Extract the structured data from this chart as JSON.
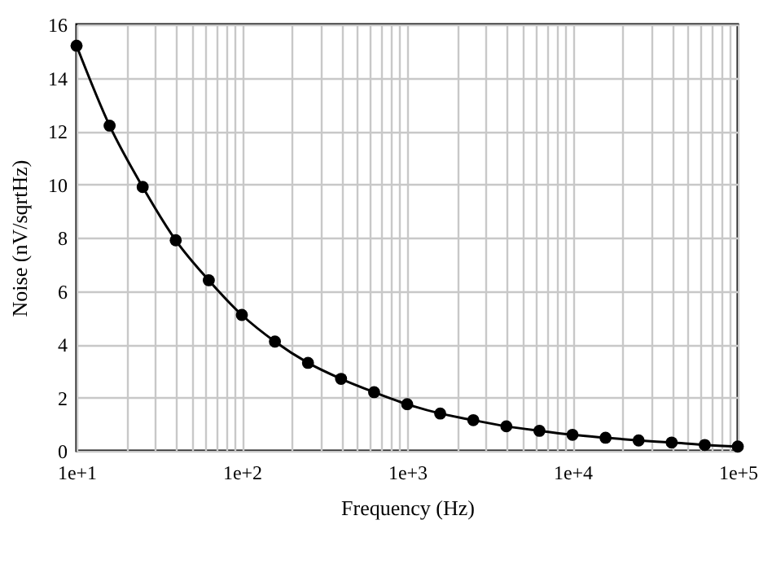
{
  "chart_data": {
    "type": "line",
    "xlabel": "Frequency (Hz)",
    "ylabel": "Noise (nV/sqrtHz)",
    "x": [
      10,
      15.85,
      25.12,
      39.81,
      63.1,
      100,
      158.5,
      251.2,
      398.1,
      631,
      1000,
      1585,
      2512,
      3981,
      6310,
      10000,
      15850,
      25120,
      39810,
      63100,
      100000
    ],
    "series": [
      {
        "color": "#000000",
        "values": [
          15.2,
          12.2,
          9.9,
          7.9,
          6.4,
          5.1,
          4.1,
          3.3,
          2.7,
          2.2,
          1.75,
          1.4,
          1.15,
          0.92,
          0.75,
          0.6,
          0.49,
          0.39,
          0.31,
          0.22,
          0.16
        ]
      }
    ],
    "log": "x",
    "xlim": [
      10,
      100000
    ],
    "ylim": [
      0,
      16
    ],
    "xticks": [
      {
        "value": 10,
        "label": "1e+1"
      },
      {
        "value": 20,
        "label": null
      },
      {
        "value": 30,
        "label": null
      },
      {
        "value": 40,
        "label": null
      },
      {
        "value": 50,
        "label": null
      },
      {
        "value": 60,
        "label": null
      },
      {
        "value": 70,
        "label": null
      },
      {
        "value": 80,
        "label": null
      },
      {
        "value": 90,
        "label": null
      },
      {
        "value": 100,
        "label": "1e+2"
      },
      {
        "value": 200,
        "label": null
      },
      {
        "value": 300,
        "label": null
      },
      {
        "value": 400,
        "label": null
      },
      {
        "value": 500,
        "label": null
      },
      {
        "value": 600,
        "label": null
      },
      {
        "value": 700,
        "label": null
      },
      {
        "value": 800,
        "label": null
      },
      {
        "value": 900,
        "label": null
      },
      {
        "value": 1000,
        "label": "1e+3"
      },
      {
        "value": 2000,
        "label": null
      },
      {
        "value": 3000,
        "label": null
      },
      {
        "value": 4000,
        "label": null
      },
      {
        "value": 5000,
        "label": null
      },
      {
        "value": 6000,
        "label": null
      },
      {
        "value": 7000,
        "label": null
      },
      {
        "value": 8000,
        "label": null
      },
      {
        "value": 9000,
        "label": null
      },
      {
        "value": 10000,
        "label": "1e+4"
      },
      {
        "value": 20000,
        "label": null
      },
      {
        "value": 30000,
        "label": null
      },
      {
        "value": 40000,
        "label": null
      },
      {
        "value": 50000,
        "label": null
      },
      {
        "value": 60000,
        "label": null
      },
      {
        "value": 70000,
        "label": null
      },
      {
        "value": 80000,
        "label": null
      },
      {
        "value": 90000,
        "label": null
      },
      {
        "value": 100000,
        "label": "1e+5"
      }
    ],
    "yticks": [
      0,
      2,
      4,
      6,
      8,
      10,
      12,
      14,
      16
    ],
    "grid": true,
    "marker": "circle",
    "line_style": "solid",
    "legend": false
  }
}
